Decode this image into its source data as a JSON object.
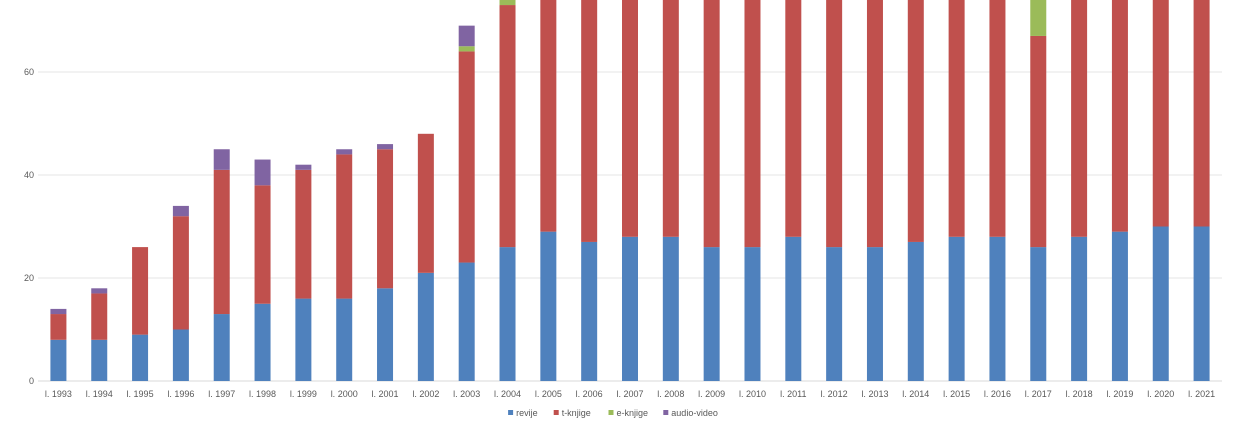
{
  "chart_data": {
    "type": "bar",
    "stacked": true,
    "title": "",
    "xlabel": "",
    "ylabel": "",
    "ylim": [
      0,
      75
    ],
    "y_ticks": [
      0,
      20,
      40,
      60
    ],
    "grid": true,
    "legend_position": "bottom",
    "categories": [
      "l. 1993",
      "l. 1994",
      "l. 1995",
      "l. 1996",
      "l. 1997",
      "l. 1998",
      "l. 1999",
      "l. 2000",
      "l. 2001",
      "l. 2002",
      "l. 2003",
      "l. 2004",
      "l. 2005",
      "l. 2006",
      "l. 2007",
      "l. 2008",
      "l. 2009",
      "l. 2010",
      "l. 2011",
      "l. 2012",
      "l. 2013",
      "l. 2014",
      "l. 2015",
      "l. 2016",
      "l. 2017",
      "l. 2018",
      "l. 2019",
      "l. 2020",
      "l. 2021"
    ],
    "series": [
      {
        "name": "revije",
        "color": "#4f81bd",
        "values": [
          8,
          8,
          9,
          10,
          13,
          15,
          16,
          16,
          18,
          21,
          23,
          26,
          29,
          27,
          28,
          28,
          26,
          26,
          28,
          26,
          26,
          27,
          28,
          28,
          26,
          28,
          29,
          30,
          30
        ]
      },
      {
        "name": "t-knjige",
        "color": "#c0504d",
        "values": [
          5,
          9,
          17,
          22,
          28,
          23,
          25,
          28,
          27,
          27,
          41,
          47,
          46,
          48,
          47,
          46,
          49,
          49,
          47,
          49,
          49,
          48,
          47,
          47,
          41,
          47,
          46,
          45,
          45
        ]
      },
      {
        "name": "e-knjige",
        "color": "#9bbb59",
        "values": [
          0,
          0,
          0,
          0,
          0,
          0,
          0,
          0,
          0,
          0,
          1,
          2,
          0,
          0,
          0,
          1,
          0,
          0,
          0,
          0,
          0,
          0,
          0,
          0,
          8,
          0,
          0,
          0,
          0
        ]
      },
      {
        "name": "audio-video",
        "color": "#8064a2",
        "values": [
          1,
          1,
          0,
          2,
          4,
          5,
          1,
          1,
          1,
          0,
          4,
          0,
          0,
          0,
          0,
          0,
          0,
          0,
          0,
          0,
          0,
          0,
          0,
          0,
          0,
          0,
          0,
          0,
          0
        ]
      }
    ]
  }
}
